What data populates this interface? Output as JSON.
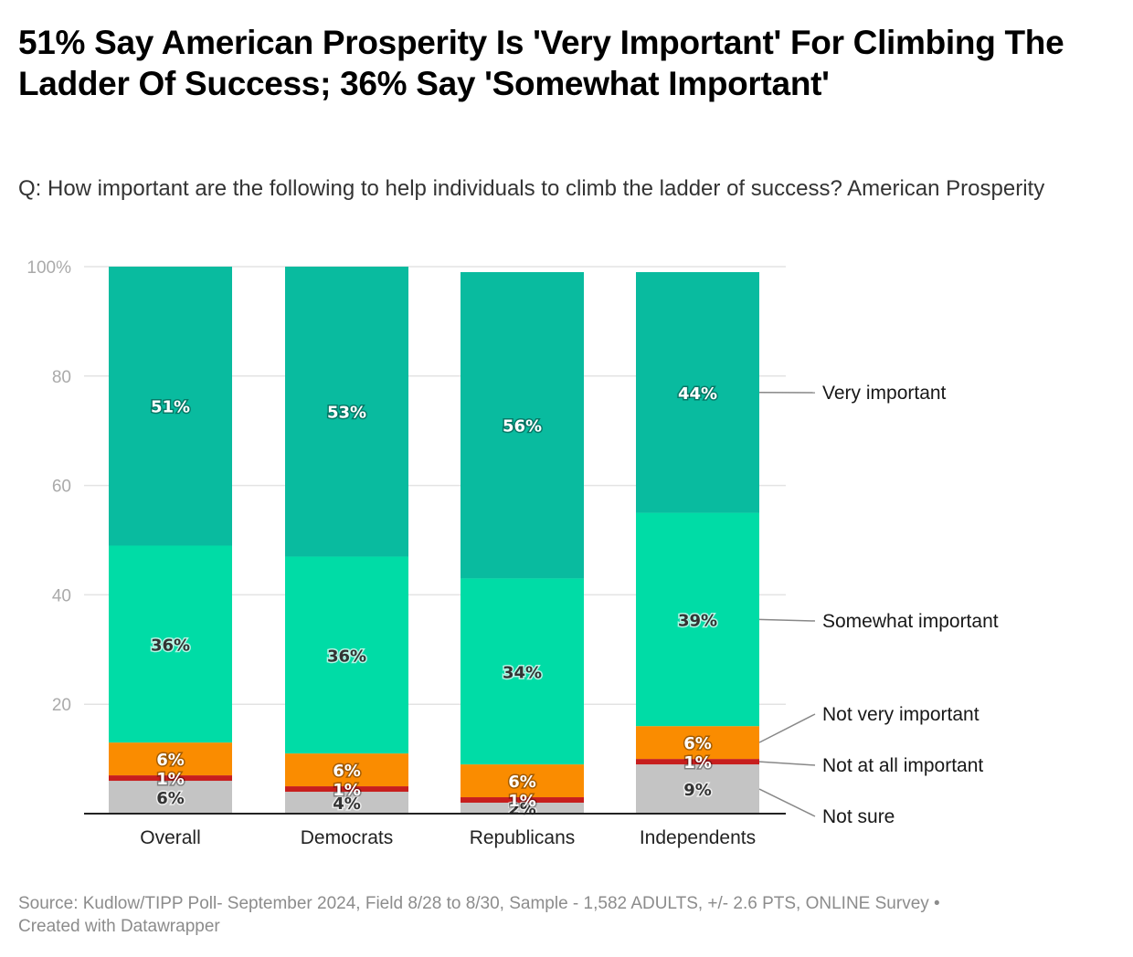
{
  "header": {
    "title": "51% Say American Prosperity Is 'Very Important' For Climbing The Ladder Of Success; 36% Say 'Somewhat Important'",
    "subtitle": "Q: How important are the following to help individuals to climb the ladder of success? American Prosperity"
  },
  "footer": {
    "source": "Source: Kudlow/TIPP Poll- September 2024, Field 8/28 to 8/30, Sample - 1,582 ADULTS, +/- 2.6 PTS, ONLINE Survey •",
    "credit": "Created with Datawrapper"
  },
  "chart_data": {
    "type": "bar",
    "stacked": true,
    "title": "51% Say American Prosperity Is 'Very Important' For Climbing The Ladder Of Success; 36% Say 'Somewhat Important'",
    "xlabel": "",
    "ylabel": "",
    "ylim": [
      0,
      100
    ],
    "yticks": [
      {
        "value": 100,
        "label": "100%"
      },
      {
        "value": 80,
        "label": "80"
      },
      {
        "value": 60,
        "label": "60"
      },
      {
        "value": 40,
        "label": "40"
      },
      {
        "value": 20,
        "label": "20"
      }
    ],
    "grid": true,
    "legend_placement": "right (direct labels)",
    "categories": [
      "Overall",
      "Democrats",
      "Republicans",
      "Independents"
    ],
    "series": [
      {
        "name": "Not sure",
        "color": "#c4c4c4",
        "label_style": "dark",
        "values": [
          6,
          4,
          2,
          9
        ]
      },
      {
        "name": "Not at all important",
        "color": "#c71e1d",
        "label_style": "white",
        "values": [
          1,
          1,
          1,
          1
        ]
      },
      {
        "name": "Not very important",
        "color": "#fa8c00",
        "label_style": "white",
        "values": [
          6,
          6,
          6,
          6
        ]
      },
      {
        "name": "Somewhat important",
        "color": "#00dca6",
        "label_style": "dark",
        "values": [
          36,
          36,
          34,
          39
        ]
      },
      {
        "name": "Very important",
        "color": "#09bb9f",
        "label_style": "white",
        "values": [
          51,
          53,
          56,
          44
        ]
      }
    ],
    "data_label_suffix": "%"
  }
}
